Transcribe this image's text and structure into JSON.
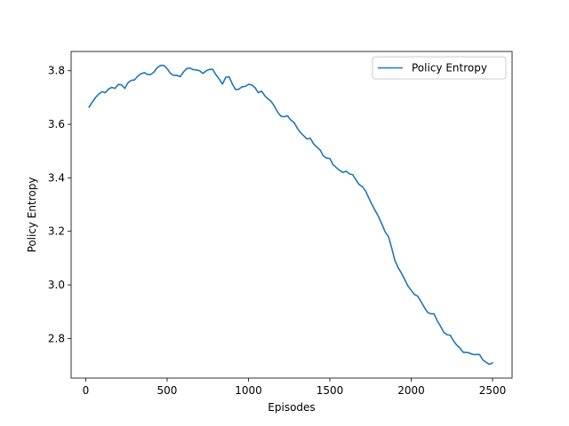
{
  "chart_data": {
    "type": "line",
    "xlabel": "Episodes",
    "ylabel": "Policy Entropy",
    "xlim": [
      -90,
      2620
    ],
    "ylim": [
      2.652,
      3.872
    ],
    "xticks": [
      0,
      500,
      1000,
      1500,
      2000,
      2500
    ],
    "xtick_labels": [
      "0",
      "500",
      "1000",
      "1500",
      "2000",
      "2500"
    ],
    "yticks": [
      2.8,
      3.0,
      3.2,
      3.4,
      3.6,
      3.8
    ],
    "ytick_labels": [
      "2.8",
      "3.0",
      "3.2",
      "3.4",
      "3.6",
      "3.8"
    ],
    "grid": false,
    "legend_position": "top-right",
    "colors": {
      "series": "#1f77b4",
      "axes": "#000000",
      "background": "#ffffff"
    },
    "series": [
      {
        "name": "Policy Entropy",
        "x": [
          20,
          40,
          60,
          80,
          100,
          120,
          140,
          160,
          180,
          200,
          220,
          240,
          260,
          280,
          300,
          320,
          340,
          360,
          380,
          400,
          420,
          440,
          460,
          480,
          500,
          520,
          540,
          560,
          580,
          600,
          620,
          640,
          660,
          680,
          700,
          720,
          740,
          760,
          780,
          800,
          820,
          840,
          860,
          880,
          900,
          920,
          940,
          960,
          980,
          1000,
          1020,
          1040,
          1060,
          1080,
          1100,
          1120,
          1140,
          1160,
          1180,
          1200,
          1220,
          1240,
          1260,
          1280,
          1300,
          1320,
          1340,
          1360,
          1380,
          1400,
          1420,
          1440,
          1460,
          1480,
          1500,
          1520,
          1540,
          1560,
          1580,
          1600,
          1620,
          1640,
          1660,
          1680,
          1700,
          1720,
          1740,
          1760,
          1780,
          1800,
          1820,
          1840,
          1860,
          1880,
          1900,
          1920,
          1940,
          1960,
          1980,
          2000,
          2020,
          2040,
          2060,
          2080,
          2100,
          2120,
          2140,
          2160,
          2180,
          2200,
          2220,
          2240,
          2260,
          2280,
          2300,
          2320,
          2340,
          2360,
          2380,
          2400,
          2420,
          2440,
          2460,
          2480,
          2500
        ],
        "values": [
          3.664,
          3.683,
          3.7,
          3.713,
          3.722,
          3.718,
          3.732,
          3.738,
          3.734,
          3.749,
          3.747,
          3.734,
          3.756,
          3.764,
          3.766,
          3.78,
          3.789,
          3.793,
          3.786,
          3.786,
          3.796,
          3.812,
          3.82,
          3.82,
          3.808,
          3.79,
          3.783,
          3.783,
          3.778,
          3.795,
          3.808,
          3.81,
          3.804,
          3.803,
          3.8,
          3.79,
          3.8,
          3.805,
          3.805,
          3.785,
          3.769,
          3.75,
          3.775,
          3.778,
          3.752,
          3.73,
          3.731,
          3.74,
          3.741,
          3.749,
          3.747,
          3.737,
          3.718,
          3.724,
          3.707,
          3.695,
          3.685,
          3.667,
          3.645,
          3.63,
          3.628,
          3.632,
          3.616,
          3.607,
          3.585,
          3.569,
          3.557,
          3.545,
          3.548,
          3.527,
          3.515,
          3.504,
          3.482,
          3.474,
          3.472,
          3.449,
          3.438,
          3.428,
          3.42,
          3.425,
          3.415,
          3.412,
          3.393,
          3.375,
          3.367,
          3.35,
          3.324,
          3.299,
          3.276,
          3.254,
          3.227,
          3.198,
          3.181,
          3.138,
          3.091,
          3.064,
          3.044,
          3.02,
          2.996,
          2.98,
          2.964,
          2.958,
          2.938,
          2.917,
          2.898,
          2.892,
          2.892,
          2.866,
          2.846,
          2.823,
          2.814,
          2.812,
          2.791,
          2.775,
          2.764,
          2.748,
          2.748,
          2.745,
          2.74,
          2.74,
          2.74,
          2.72,
          2.711,
          2.703,
          2.709
        ]
      }
    ]
  }
}
